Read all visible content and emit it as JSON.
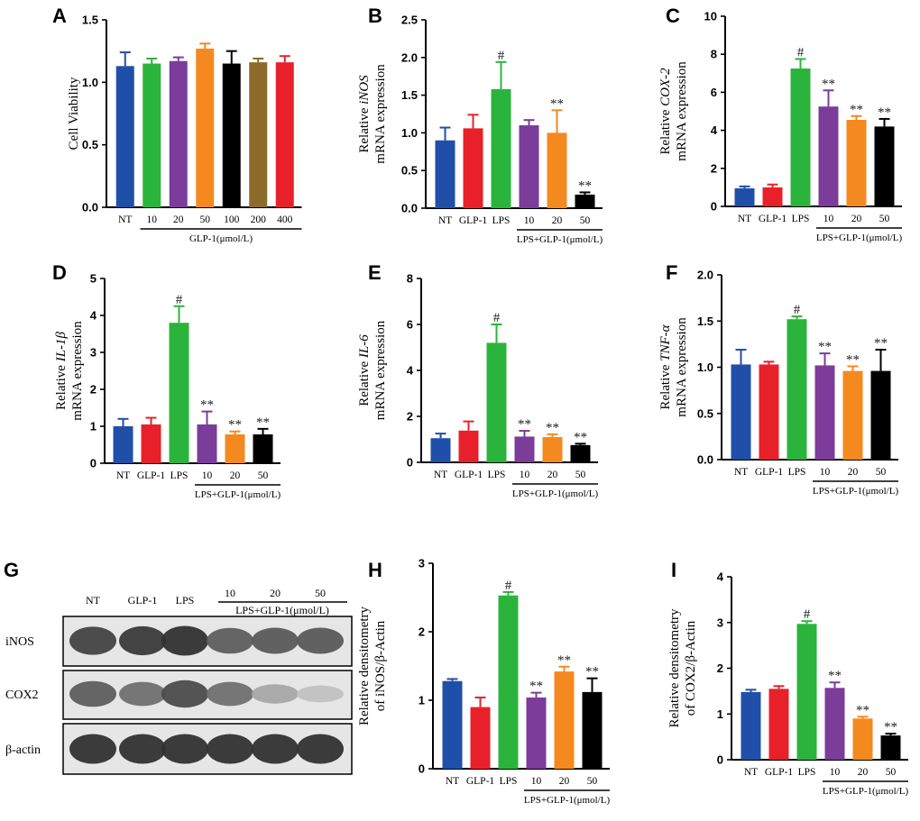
{
  "colors": {
    "NT": "#1f4fa8",
    "GLP-1": "#e8202a",
    "LPS": "#2bb43c",
    "c10": "#7b3c9a",
    "c20": "#f48a1f",
    "c50": "#000000",
    "c100": "#000000",
    "c200": "#8c6b2a",
    "c400": "#e8202a",
    "A10": "#2bb43c",
    "A20": "#7b3c9a",
    "A50": "#f48a1f"
  },
  "chart_data": [
    {
      "id": "A",
      "type": "bar",
      "letter": "A",
      "ylabel": [
        "Cell Viability"
      ],
      "ylim": [
        0,
        1.5
      ],
      "yticks": [
        0.0,
        0.5,
        1.0,
        1.5
      ],
      "ytick_labels": [
        "0.0",
        "0.5",
        "1.0",
        "1.5"
      ],
      "categories": [
        "NT",
        "10",
        "20",
        "50",
        "100",
        "200",
        "400"
      ],
      "values": [
        1.13,
        1.15,
        1.17,
        1.27,
        1.15,
        1.16,
        1.16
      ],
      "errors": [
        0.11,
        0.04,
        0.03,
        0.04,
        0.1,
        0.03,
        0.05
      ],
      "color_keys": [
        "NT",
        "A10",
        "A20",
        "A50",
        "c100",
        "c200",
        "c400"
      ],
      "significance": [
        "",
        "",
        "",
        "",
        "",
        "",
        ""
      ],
      "group_label": "GLP-1(μmol/L)",
      "group_start": 1
    },
    {
      "id": "B",
      "type": "bar",
      "letter": "B",
      "ylabel": [
        "Relative iNOS",
        "mRNA expression"
      ],
      "ylim": [
        0,
        2.5
      ],
      "yticks": [
        0.0,
        0.5,
        1.0,
        1.5,
        2.0,
        2.5
      ],
      "ytick_labels": [
        "0.0",
        "0.5",
        "1.0",
        "1.5",
        "2.0",
        "2.5"
      ],
      "categories": [
        "NT",
        "GLP-1",
        "LPS",
        "10",
        "20",
        "50"
      ],
      "values": [
        0.9,
        1.06,
        1.58,
        1.1,
        1.0,
        0.18
      ],
      "errors": [
        0.17,
        0.18,
        0.36,
        0.07,
        0.3,
        0.03
      ],
      "color_keys": [
        "NT",
        "GLP-1",
        "LPS",
        "c10",
        "c20",
        "c50"
      ],
      "significance": [
        "",
        "",
        "#",
        "",
        "**",
        "**"
      ],
      "group_label": "LPS+GLP-1(μmol/L)",
      "group_start": 3
    },
    {
      "id": "C",
      "type": "bar",
      "letter": "C",
      "ylabel": [
        "Relative COX-2",
        "mRNA expression"
      ],
      "ylim": [
        0,
        10
      ],
      "yticks": [
        0,
        2,
        4,
        6,
        8,
        10
      ],
      "ytick_labels": [
        "0",
        "2",
        "4",
        "6",
        "8",
        "10"
      ],
      "categories": [
        "NT",
        "GLP-1",
        "LPS",
        "10",
        "20",
        "50"
      ],
      "values": [
        0.95,
        1.0,
        7.25,
        5.25,
        4.55,
        4.2
      ],
      "errors": [
        0.1,
        0.15,
        0.5,
        0.85,
        0.2,
        0.4
      ],
      "color_keys": [
        "NT",
        "GLP-1",
        "LPS",
        "c10",
        "c20",
        "c50"
      ],
      "significance": [
        "",
        "",
        "#",
        "**",
        "**",
        "**"
      ],
      "group_label": "LPS+GLP-1(μmol/L)",
      "group_start": 3
    },
    {
      "id": "D",
      "type": "bar",
      "letter": "D",
      "ylabel": [
        "Relative IL-1β",
        "mRNA expression"
      ],
      "ylim": [
        0,
        5
      ],
      "yticks": [
        0,
        1,
        2,
        3,
        4,
        5
      ],
      "ytick_labels": [
        "0",
        "1",
        "2",
        "3",
        "4",
        "5"
      ],
      "categories": [
        "NT",
        "GLP-1",
        "LPS",
        "10",
        "20",
        "50"
      ],
      "values": [
        1.0,
        1.05,
        3.8,
        1.05,
        0.78,
        0.78
      ],
      "errors": [
        0.2,
        0.18,
        0.45,
        0.35,
        0.08,
        0.15
      ],
      "color_keys": [
        "NT",
        "GLP-1",
        "LPS",
        "c10",
        "c20",
        "c50"
      ],
      "significance": [
        "",
        "",
        "#",
        "**",
        "**",
        "**"
      ],
      "group_label": "LPS+GLP-1(μmol/L)",
      "group_start": 3
    },
    {
      "id": "E",
      "type": "bar",
      "letter": "E",
      "ylabel": [
        "Relative IL-6",
        "mRNA expression"
      ],
      "ylim": [
        0,
        8
      ],
      "yticks": [
        0,
        2,
        4,
        6,
        8
      ],
      "ytick_labels": [
        "0",
        "2",
        "4",
        "6",
        "8"
      ],
      "categories": [
        "NT",
        "GLP-1",
        "LPS",
        "10",
        "20",
        "50"
      ],
      "values": [
        1.05,
        1.38,
        5.2,
        1.12,
        1.1,
        0.75
      ],
      "errors": [
        0.2,
        0.4,
        0.8,
        0.25,
        0.12,
        0.06
      ],
      "color_keys": [
        "NT",
        "GLP-1",
        "LPS",
        "c10",
        "c20",
        "c50"
      ],
      "significance": [
        "",
        "",
        "#",
        "**",
        "**",
        "**"
      ],
      "group_label": "LPS+GLP-1(μmol/L)",
      "group_start": 3
    },
    {
      "id": "F",
      "type": "bar",
      "letter": "F",
      "ylabel": [
        "Relative TNF-α",
        "mRNA expression"
      ],
      "ylim": [
        0,
        2.0
      ],
      "yticks": [
        0.0,
        0.5,
        1.0,
        1.5,
        2.0
      ],
      "ytick_labels": [
        "0.0",
        "0.5",
        "1.0",
        "1.5",
        "2.0"
      ],
      "categories": [
        "NT",
        "GLP-1",
        "LPS",
        "10",
        "20",
        "50"
      ],
      "values": [
        1.03,
        1.03,
        1.52,
        1.02,
        0.96,
        0.96
      ],
      "errors": [
        0.16,
        0.03,
        0.03,
        0.13,
        0.05,
        0.23
      ],
      "color_keys": [
        "NT",
        "GLP-1",
        "LPS",
        "c10",
        "c20",
        "c50"
      ],
      "significance": [
        "",
        "",
        "#",
        "**",
        "**",
        "**"
      ],
      "group_label": "LPS+GLP-1(μmol/L)",
      "group_start": 3
    },
    {
      "id": "H",
      "type": "bar",
      "letter": "H",
      "ylabel": [
        "Relative densitometry",
        "of iNOS/β-Actin"
      ],
      "ylim": [
        0,
        3
      ],
      "yticks": [
        0,
        1,
        2,
        3
      ],
      "ytick_labels": [
        "0",
        "1",
        "2",
        "3"
      ],
      "categories": [
        "NT",
        "GLP-1",
        "LPS",
        "10",
        "20",
        "50"
      ],
      "values": [
        1.28,
        0.9,
        2.53,
        1.04,
        1.42,
        1.12
      ],
      "errors": [
        0.03,
        0.14,
        0.05,
        0.07,
        0.07,
        0.2
      ],
      "color_keys": [
        "NT",
        "GLP-1",
        "LPS",
        "c10",
        "c20",
        "c50"
      ],
      "significance": [
        "",
        "",
        "#",
        "**",
        "**",
        "**"
      ],
      "group_label": "LPS+GLP-1(μmol/L)",
      "group_start": 3
    },
    {
      "id": "I",
      "type": "bar",
      "letter": "I",
      "ylabel": [
        "Relative densitometry",
        "of COX2/β-Actin"
      ],
      "ylim": [
        0,
        4
      ],
      "yticks": [
        0,
        1,
        2,
        3,
        4
      ],
      "ytick_labels": [
        "0",
        "1",
        "2",
        "3",
        "4"
      ],
      "categories": [
        "NT",
        "GLP-1",
        "LPS",
        "10",
        "20",
        "50"
      ],
      "values": [
        1.48,
        1.55,
        2.97,
        1.57,
        0.9,
        0.53
      ],
      "errors": [
        0.05,
        0.06,
        0.06,
        0.12,
        0.04,
        0.04
      ],
      "color_keys": [
        "NT",
        "GLP-1",
        "LPS",
        "c10",
        "c20",
        "c50"
      ],
      "significance": [
        "",
        "",
        "#",
        "**",
        "**",
        "**"
      ],
      "group_label": "LPS+GLP-1(μmol/L)",
      "group_start": 3
    }
  ],
  "western_blot": {
    "letter": "G",
    "columns": [
      "NT",
      "GLP-1",
      "LPS",
      "10",
      "20",
      "50"
    ],
    "group_label": "LPS+GLP-1(μmol/L)",
    "rows": [
      {
        "label": "iNOS",
        "intensity": [
          0.85,
          0.9,
          0.95,
          0.7,
          0.72,
          0.72
        ]
      },
      {
        "label": "COX2",
        "intensity": [
          0.7,
          0.6,
          0.8,
          0.6,
          0.3,
          0.15
        ]
      },
      {
        "label": "β-actin",
        "intensity": [
          0.95,
          0.95,
          0.95,
          0.95,
          0.95,
          0.95
        ]
      }
    ]
  }
}
